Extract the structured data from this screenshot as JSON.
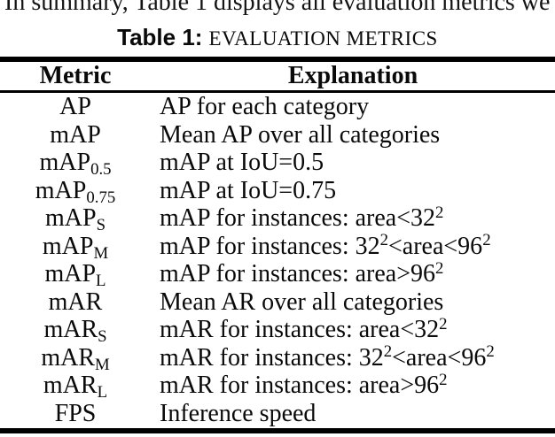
{
  "page": {
    "body_text_fragment": "In summary, Table 1 displays all evaluation metrics we",
    "caption": {
      "label": "Table 1:",
      "title": "EVALUATION METRICS"
    }
  },
  "table": {
    "columns": [
      {
        "label": "Metric"
      },
      {
        "label": "Explanation"
      }
    ],
    "rows": [
      {
        "metric": "AP",
        "explanation": "AP for each category"
      },
      {
        "metric": "mAP",
        "explanation": "Mean AP over all categories"
      },
      {
        "metric": "mAP~0.5~",
        "explanation": "mAP at IoU=0.5"
      },
      {
        "metric": "mAP~0.75~",
        "explanation": "mAP at IoU=0.75"
      },
      {
        "metric": "mAP~S~",
        "explanation": "mAP for instances: area<32^2^"
      },
      {
        "metric": "mAP~M~",
        "explanation": "mAP for instances: 32^2^<area<96^2^"
      },
      {
        "metric": "mAP~L~",
        "explanation": "mAP for instances: area>96^2^"
      },
      {
        "metric": "mAR",
        "explanation": "Mean AR over all categories"
      },
      {
        "metric": "mAR~S~",
        "explanation": "mAR for instances: area<32^2^"
      },
      {
        "metric": "mAR~M~",
        "explanation": "mAR for instances: 32^2^<area<96^2^"
      },
      {
        "metric": "mAR~L~",
        "explanation": "mAR for instances: area>96^2^"
      },
      {
        "metric": "FPS",
        "explanation": "Inference speed"
      }
    ],
    "colors": {
      "text": "#0a0a0a",
      "rule": "#000000",
      "background": "#ffffff"
    }
  }
}
